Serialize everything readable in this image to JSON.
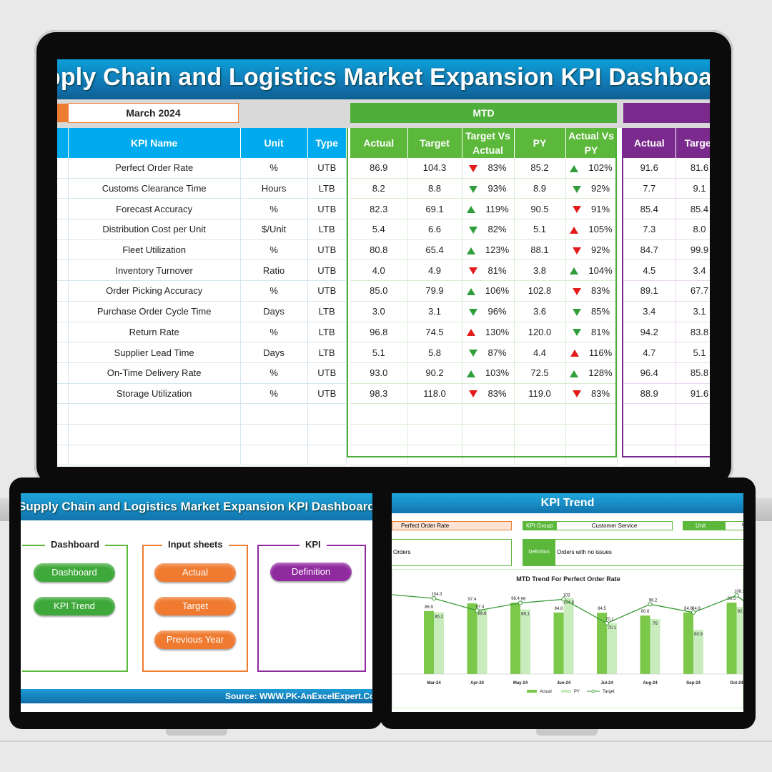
{
  "main_dashboard": {
    "title": "Supply Chain and Logistics Market Expansion KPI Dashboard - Report",
    "month": "March 2024",
    "mtd_label": "MTD",
    "headers": {
      "kpi_name": "KPI Name",
      "unit": "Unit",
      "type": "Type"
    },
    "mtd_headers": [
      "Actual",
      "Target",
      "Target Vs Actual",
      "PY",
      "Actual Vs PY"
    ],
    "ytd_headers": [
      "Actual",
      "Target"
    ],
    "rows": [
      {
        "name": "Perfect Order Rate",
        "unit": "%",
        "type": "UTB",
        "actual": "86.9",
        "target": "104.3",
        "tva": "83%",
        "tva_dir": "down",
        "tva_color": "red",
        "py": "85.2",
        "avp": "102%",
        "avp_dir": "up",
        "avp_color": "green",
        "ytd_actual": "91.6",
        "ytd_target": "81.6"
      },
      {
        "name": "Customs Clearance Time",
        "unit": "Hours",
        "type": "LTB",
        "actual": "8.2",
        "target": "8.8",
        "tva": "93%",
        "tva_dir": "down",
        "tva_color": "green",
        "py": "8.9",
        "avp": "92%",
        "avp_dir": "down",
        "avp_color": "green",
        "ytd_actual": "7.7",
        "ytd_target": "9.1"
      },
      {
        "name": "Forecast Accuracy",
        "unit": "%",
        "type": "UTB",
        "actual": "82.3",
        "target": "69.1",
        "tva": "119%",
        "tva_dir": "up",
        "tva_color": "green",
        "py": "90.5",
        "avp": "91%",
        "avp_dir": "down",
        "avp_color": "red",
        "ytd_actual": "85.4",
        "ytd_target": "85.4"
      },
      {
        "name": "Distribution Cost per Unit",
        "unit": "$/Unit",
        "type": "LTB",
        "actual": "5.4",
        "target": "6.6",
        "tva": "82%",
        "tva_dir": "down",
        "tva_color": "green",
        "py": "5.1",
        "avp": "105%",
        "avp_dir": "up",
        "avp_color": "red",
        "ytd_actual": "7.3",
        "ytd_target": "8.0"
      },
      {
        "name": "Fleet Utilization",
        "unit": "%",
        "type": "UTB",
        "actual": "80.8",
        "target": "65.4",
        "tva": "123%",
        "tva_dir": "up",
        "tva_color": "green",
        "py": "88.1",
        "avp": "92%",
        "avp_dir": "down",
        "avp_color": "red",
        "ytd_actual": "84.7",
        "ytd_target": "99.9"
      },
      {
        "name": "Inventory Turnover",
        "unit": "Ratio",
        "type": "UTB",
        "actual": "4.0",
        "target": "4.9",
        "tva": "81%",
        "tva_dir": "down",
        "tva_color": "red",
        "py": "3.8",
        "avp": "104%",
        "avp_dir": "up",
        "avp_color": "green",
        "ytd_actual": "4.5",
        "ytd_target": "3.4"
      },
      {
        "name": "Order Picking Accuracy",
        "unit": "%",
        "type": "UTB",
        "actual": "85.0",
        "target": "79.9",
        "tva": "106%",
        "tva_dir": "up",
        "tva_color": "green",
        "py": "102.8",
        "avp": "83%",
        "avp_dir": "down",
        "avp_color": "red",
        "ytd_actual": "89.1",
        "ytd_target": "67.7"
      },
      {
        "name": "Purchase Order Cycle Time",
        "unit": "Days",
        "type": "LTB",
        "actual": "3.0",
        "target": "3.1",
        "tva": "96%",
        "tva_dir": "down",
        "tva_color": "green",
        "py": "3.6",
        "avp": "85%",
        "avp_dir": "down",
        "avp_color": "green",
        "ytd_actual": "3.4",
        "ytd_target": "3.1"
      },
      {
        "name": "Return Rate",
        "unit": "%",
        "type": "LTB",
        "actual": "96.8",
        "target": "74.5",
        "tva": "130%",
        "tva_dir": "up",
        "tva_color": "red",
        "py": "120.0",
        "avp": "81%",
        "avp_dir": "down",
        "avp_color": "green",
        "ytd_actual": "94.2",
        "ytd_target": "83.8"
      },
      {
        "name": "Supplier Lead Time",
        "unit": "Days",
        "type": "LTB",
        "actual": "5.1",
        "target": "5.8",
        "tva": "87%",
        "tva_dir": "down",
        "tva_color": "green",
        "py": "4.4",
        "avp": "116%",
        "avp_dir": "up",
        "avp_color": "red",
        "ytd_actual": "4.7",
        "ytd_target": "5.1"
      },
      {
        "name": "On-Time Delivery Rate",
        "unit": "%",
        "type": "UTB",
        "actual": "93.0",
        "target": "90.2",
        "tva": "103%",
        "tva_dir": "up",
        "tva_color": "green",
        "py": "72.5",
        "avp": "128%",
        "avp_dir": "up",
        "avp_color": "green",
        "ytd_actual": "96.4",
        "ytd_target": "85.8"
      },
      {
        "name": "Storage Utilization",
        "unit": "%",
        "type": "UTB",
        "actual": "98.3",
        "target": "118.0",
        "tva": "83%",
        "tva_dir": "down",
        "tva_color": "red",
        "py": "119.0",
        "avp": "83%",
        "avp_dir": "down",
        "avp_color": "red",
        "ytd_actual": "88.9",
        "ytd_target": "91.6"
      }
    ]
  },
  "home": {
    "title": "Supply Chain and Logistics Market Expansion KPI Dashboard",
    "sections": {
      "dashboard": {
        "label": "Dashboard",
        "buttons": [
          "Dashboard",
          "KPI Trend"
        ]
      },
      "input": {
        "label": "Input sheets",
        "buttons": [
          "Actual",
          "Target",
          "Previous Year"
        ]
      },
      "kpi": {
        "label": "KPI",
        "buttons": [
          "Definition"
        ]
      }
    },
    "source": "Source: WWW.PK-AnExcelExpert.Com"
  },
  "kpi_trend": {
    "title": "KPI Trend",
    "selected_kpi": "Perfect Order Rate",
    "kpi_group_label": "KPI Group",
    "kpi_group_value": "Customer Service",
    "unit_label": "Unit",
    "unit_value": "%",
    "formula_text": "Orders",
    "definition_label": "Definition",
    "definition_value": "Orders with no issues",
    "chart_data": {
      "type": "bar",
      "title": "MTD Trend For Perfect Order Rate",
      "categories": [
        "Mar-24",
        "Apr-24",
        "May-24",
        "Jun-24",
        "Jul-24",
        "Aug-24",
        "Sep-24",
        "Oct-24"
      ],
      "series": [
        {
          "name": "Actual",
          "type": "bar",
          "values": [
            86.9,
            97.4,
            98.4,
            84.8,
            84.5,
            80.6,
            84.9,
            98.5
          ]
        },
        {
          "name": "PY",
          "type": "bar",
          "values": [
            85.2,
            89.6,
            89.1,
            104.8,
            70.1,
            76.0,
            60.9,
            92.6
          ]
        },
        {
          "name": "Target",
          "type": "line",
          "values": [
            104.3,
            87.4,
            98.0,
            103.0,
            70.1,
            96.2,
            84.9,
            108.3
          ]
        }
      ],
      "colors": {
        "Actual": "#7cc84a",
        "PY": "#c9ecbd",
        "Target": "#3a9a35"
      }
    }
  }
}
